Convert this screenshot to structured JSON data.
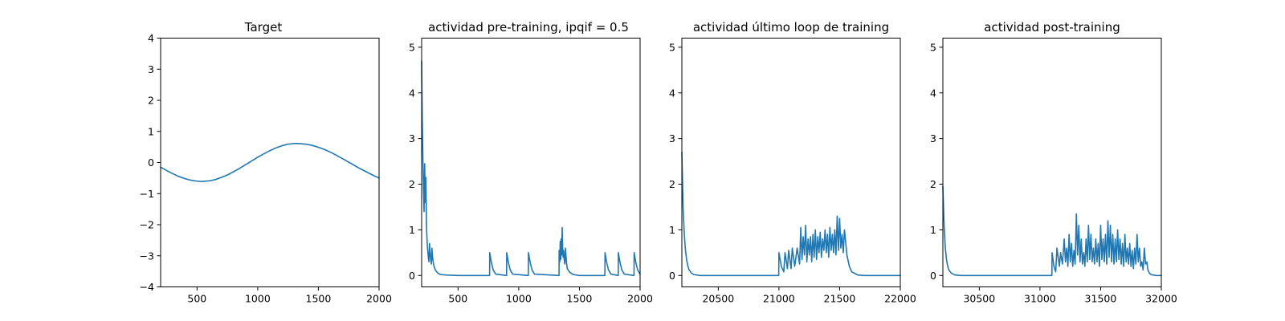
{
  "chart_data": [
    {
      "type": "line",
      "title": "Target",
      "xlabel": "",
      "ylabel": "",
      "xlim": [
        200,
        2000
      ],
      "ylim": [
        -4,
        4
      ],
      "xticks": [
        500,
        1000,
        1500,
        2000
      ],
      "xtick_labels": [
        "500",
        "1000",
        "1500",
        "2000"
      ],
      "yticks": [
        -4,
        -3,
        -2,
        -1,
        0,
        1,
        2,
        3,
        4
      ],
      "ytick_labels": [
        "−4",
        "−3",
        "−2",
        "−1",
        "0",
        "1",
        "2",
        "3",
        "4"
      ],
      "grid": false,
      "series": [
        {
          "color": "#1f77b4",
          "x": [
            200,
            250,
            300,
            350,
            400,
            450,
            500,
            540,
            600,
            650,
            700,
            750,
            800,
            850,
            900,
            950,
            1000,
            1050,
            1100,
            1150,
            1200,
            1250,
            1300,
            1330,
            1400,
            1450,
            1500,
            1550,
            1600,
            1650,
            1700,
            1750,
            1800,
            1850,
            1900,
            1950,
            2000
          ],
          "y": [
            -0.15,
            -0.26,
            -0.36,
            -0.45,
            -0.52,
            -0.57,
            -0.6,
            -0.61,
            -0.59,
            -0.55,
            -0.48,
            -0.4,
            -0.3,
            -0.19,
            -0.07,
            0.05,
            0.17,
            0.28,
            0.38,
            0.47,
            0.54,
            0.59,
            0.61,
            0.61,
            0.59,
            0.55,
            0.49,
            0.42,
            0.33,
            0.23,
            0.12,
            0.01,
            -0.1,
            -0.21,
            -0.31,
            -0.41,
            -0.5
          ]
        }
      ]
    },
    {
      "type": "line",
      "title": "actividad pre-training, ipqif = 0.5",
      "xlabel": "",
      "ylabel": "",
      "xlim": [
        200,
        2000
      ],
      "ylim": [
        -0.25,
        5.2
      ],
      "xticks": [
        500,
        1000,
        1500,
        2000
      ],
      "xtick_labels": [
        "500",
        "1000",
        "1500",
        "2000"
      ],
      "yticks": [
        0,
        1,
        2,
        3,
        4,
        5
      ],
      "ytick_labels": [
        "0",
        "1",
        "2",
        "3",
        "4",
        "5"
      ],
      "grid": false,
      "series": [
        {
          "color": "#1f77b4",
          "x": [
            200,
            205,
            210,
            215,
            220,
            225,
            230,
            235,
            240,
            245,
            250,
            255,
            260,
            265,
            270,
            275,
            280,
            285,
            290,
            295,
            300,
            310,
            320,
            340,
            360,
            400,
            500,
            600,
            760,
            761,
            775,
            790,
            810,
            900,
            901,
            915,
            930,
            950,
            1079,
            1080,
            1095,
            1110,
            1130,
            1332,
            1333,
            1338,
            1342,
            1346,
            1350,
            1354,
            1358,
            1362,
            1366,
            1370,
            1375,
            1380,
            1385,
            1390,
            1395,
            1400,
            1420,
            1450,
            1500,
            1600,
            1710,
            1711,
            1725,
            1740,
            1760,
            1820,
            1821,
            1835,
            1850,
            1870,
            1950,
            1951,
            1965,
            1980,
            2000
          ],
          "y": [
            4.7,
            3.4,
            2.6,
            1.9,
            1.4,
            2.45,
            1.6,
            2.15,
            1.1,
            0.75,
            0.55,
            0.4,
            0.3,
            0.7,
            0.5,
            0.35,
            0.25,
            0.6,
            0.4,
            0.3,
            0.22,
            0.14,
            0.09,
            0.04,
            0.02,
            0.01,
            0.0,
            0.0,
            0.0,
            0.5,
            0.28,
            0.12,
            0.03,
            0.0,
            0.5,
            0.28,
            0.12,
            0.03,
            0.0,
            0.5,
            0.28,
            0.12,
            0.03,
            0.0,
            0.55,
            0.3,
            0.75,
            0.35,
            0.8,
            0.45,
            1.05,
            0.6,
            0.4,
            0.55,
            0.35,
            0.25,
            0.6,
            0.4,
            0.25,
            0.15,
            0.07,
            0.02,
            0.0,
            0.0,
            0.0,
            0.5,
            0.28,
            0.12,
            0.03,
            0.0,
            0.5,
            0.28,
            0.12,
            0.03,
            0.0,
            0.5,
            0.28,
            0.12,
            0.03
          ]
        }
      ]
    },
    {
      "type": "line",
      "title": "actividad último loop de training",
      "xlabel": "",
      "ylabel": "",
      "xlim": [
        20200,
        22000
      ],
      "ylim": [
        -0.25,
        5.2
      ],
      "xticks": [
        20500,
        21000,
        21500,
        22000
      ],
      "xtick_labels": [
        "20500",
        "21000",
        "21500",
        "22000"
      ],
      "yticks": [
        0,
        1,
        2,
        3,
        4,
        5
      ],
      "ytick_labels": [
        "0",
        "1",
        "2",
        "3",
        "4",
        "5"
      ],
      "grid": false,
      "series": [
        {
          "color": "#1f77b4",
          "x": [
            20200,
            20210,
            20220,
            20230,
            20240,
            20250,
            20260,
            20280,
            20300,
            20350,
            20400,
            20600,
            20998,
            21000,
            21020,
            21040,
            21050,
            21070,
            21080,
            21100,
            21110,
            21130,
            21150,
            21170,
            21180,
            21190,
            21200,
            21210,
            21220,
            21230,
            21240,
            21250,
            21260,
            21270,
            21280,
            21290,
            21300,
            21310,
            21320,
            21330,
            21340,
            21350,
            21360,
            21370,
            21380,
            21390,
            21400,
            21410,
            21420,
            21430,
            21440,
            21450,
            21460,
            21470,
            21480,
            21490,
            21500,
            21510,
            21520,
            21530,
            21540,
            21560,
            21580,
            21600,
            21650,
            21700,
            22000
          ],
          "y": [
            2.7,
            1.5,
            0.9,
            0.55,
            0.33,
            0.2,
            0.12,
            0.05,
            0.02,
            0.0,
            0.0,
            0.0,
            0.0,
            0.5,
            0.2,
            0.08,
            0.5,
            0.15,
            0.55,
            0.15,
            0.6,
            0.2,
            0.6,
            0.25,
            1.05,
            0.35,
            0.85,
            0.45,
            1.1,
            0.3,
            0.8,
            0.45,
            0.85,
            0.3,
            0.9,
            0.4,
            1.0,
            0.35,
            0.85,
            0.5,
            0.95,
            0.4,
            0.8,
            0.55,
            1.0,
            0.5,
            0.9,
            0.4,
            1.05,
            0.55,
            0.9,
            0.5,
            1.0,
            0.45,
            1.3,
            0.55,
            1.25,
            0.6,
            0.9,
            0.5,
            1.0,
            0.45,
            0.2,
            0.08,
            0.01,
            0.0,
            0.0
          ]
        }
      ]
    },
    {
      "type": "line",
      "title": "actividad post-training",
      "xlabel": "",
      "ylabel": "",
      "xlim": [
        30200,
        32000
      ],
      "ylim": [
        -0.25,
        5.2
      ],
      "xticks": [
        30500,
        31000,
        31500,
        32000
      ],
      "xtick_labels": [
        "30500",
        "31000",
        "31500",
        "32000"
      ],
      "yticks": [
        0,
        1,
        2,
        3,
        4,
        5
      ],
      "ytick_labels": [
        "0",
        "1",
        "2",
        "3",
        "4",
        "5"
      ],
      "grid": false,
      "series": [
        {
          "color": "#1f77b4",
          "x": [
            30200,
            30210,
            30220,
            30230,
            30240,
            30250,
            30270,
            30300,
            30350,
            30600,
            31098,
            31100,
            31115,
            31130,
            31140,
            31160,
            31170,
            31185,
            31200,
            31210,
            31220,
            31230,
            31240,
            31250,
            31260,
            31270,
            31280,
            31290,
            31300,
            31310,
            31320,
            31330,
            31340,
            31350,
            31360,
            31370,
            31380,
            31390,
            31400,
            31410,
            31420,
            31430,
            31440,
            31450,
            31460,
            31470,
            31480,
            31490,
            31500,
            31510,
            31520,
            31530,
            31540,
            31550,
            31560,
            31570,
            31580,
            31590,
            31600,
            31610,
            31620,
            31630,
            31640,
            31650,
            31660,
            31670,
            31680,
            31690,
            31700,
            31710,
            31720,
            31730,
            31740,
            31750,
            31760,
            31770,
            31780,
            31790,
            31800,
            31810,
            31820,
            31830,
            31840,
            31850,
            31860,
            31870,
            31880,
            31890,
            31900,
            31910,
            31920,
            31930,
            31940,
            31950,
            31960,
            31970,
            31980,
            31990,
            32000
          ],
          "y": [
            1.95,
            1.1,
            0.6,
            0.35,
            0.2,
            0.12,
            0.05,
            0.01,
            0.0,
            0.0,
            0.0,
            0.5,
            0.2,
            0.08,
            0.6,
            0.2,
            0.5,
            0.25,
            0.8,
            0.3,
            0.6,
            0.2,
            0.9,
            0.3,
            0.7,
            0.2,
            0.55,
            0.25,
            1.35,
            0.45,
            1.1,
            0.3,
            0.8,
            0.25,
            0.5,
            0.2,
            0.8,
            0.3,
            1.1,
            0.35,
            0.9,
            0.3,
            0.6,
            0.25,
            0.8,
            0.3,
            0.7,
            0.2,
            1.1,
            0.35,
            0.8,
            0.3,
            0.9,
            0.25,
            1.2,
            0.4,
            1.1,
            0.3,
            0.9,
            0.25,
            0.8,
            0.3,
            1.0,
            0.35,
            0.8,
            0.25,
            0.7,
            0.2,
            0.9,
            0.3,
            0.6,
            0.25,
            0.7,
            0.2,
            0.55,
            0.15,
            0.6,
            0.25,
            0.9,
            0.3,
            0.6,
            0.2,
            0.3,
            0.12,
            0.6,
            0.25,
            0.3,
            0.12,
            0.06,
            0.03,
            0.02,
            0.01,
            0.01,
            0.0,
            0.0,
            0.0,
            0.0,
            0.0,
            0.0
          ]
        }
      ]
    }
  ]
}
